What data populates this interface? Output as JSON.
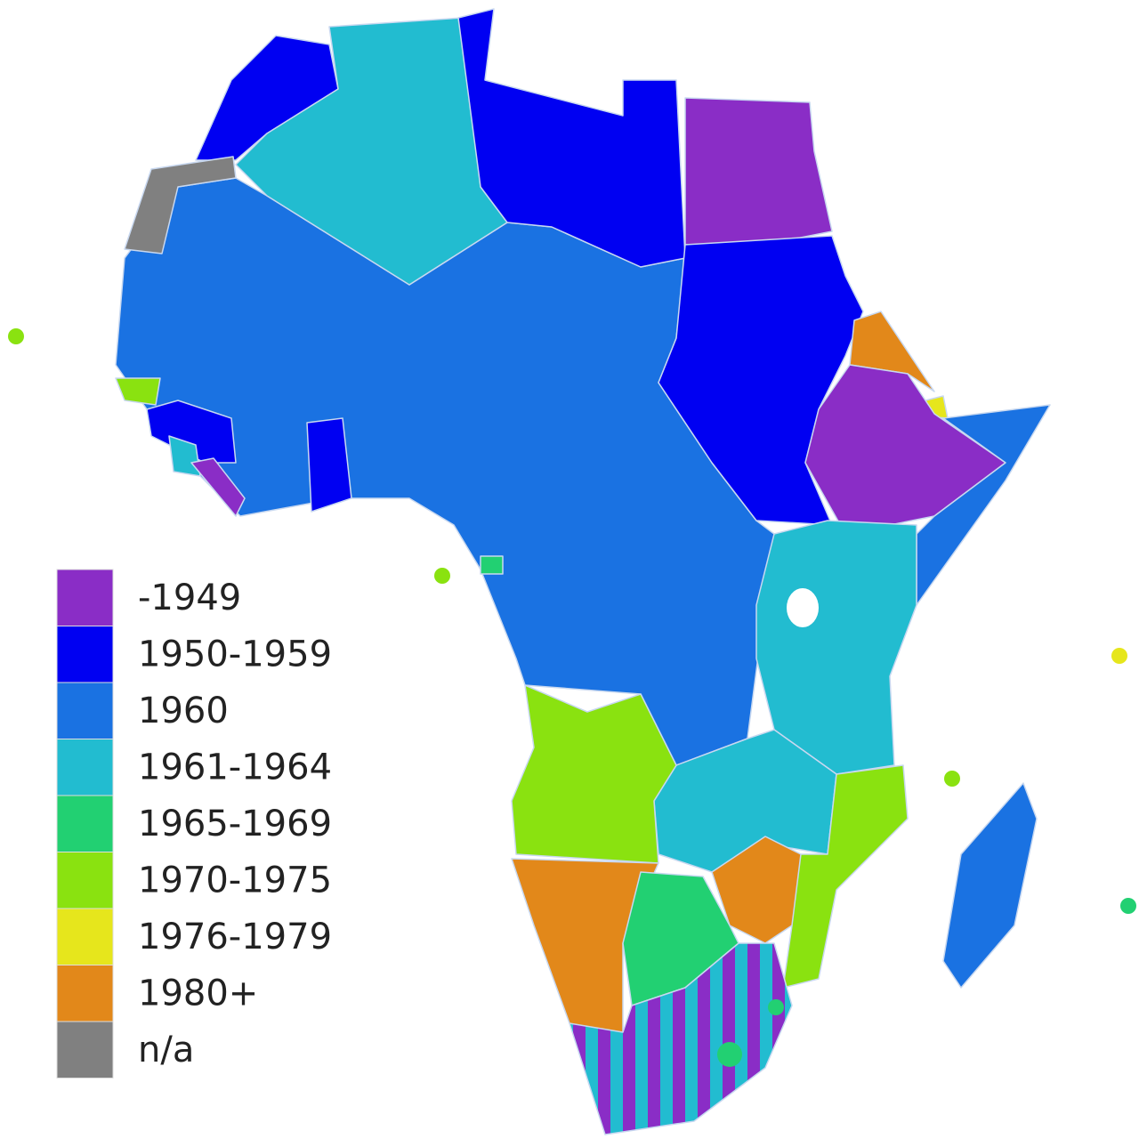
{
  "legend": {
    "items": [
      {
        "label": "-1949",
        "color": "#8a2dc6"
      },
      {
        "label": "1950-1959",
        "color": "#0000f2"
      },
      {
        "label": "1960",
        "color": "#1a72e2"
      },
      {
        "label": "1961-1964",
        "color": "#22bcd0"
      },
      {
        "label": "1965-1969",
        "color": "#22d072"
      },
      {
        "label": "1970-1975",
        "color": "#8ae210"
      },
      {
        "label": "1976-1979",
        "color": "#e6e61c"
      },
      {
        "label": "1980+",
        "color": "#e2881a"
      },
      {
        "label": "n/a",
        "color": "#808080"
      }
    ]
  }
}
